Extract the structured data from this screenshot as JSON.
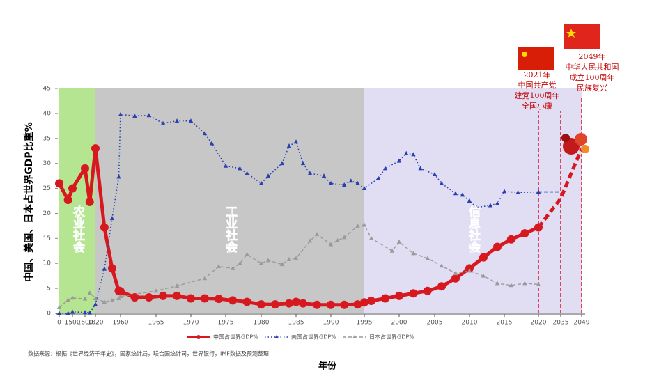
{
  "chart_data": {
    "type": "line",
    "ylabel": "中国、美国、日本占世界GDP比重%",
    "xlabel": "年份",
    "source": "数据来源：根据《世界经济千年史》，国家统计局，联合国统计司，世界银行，IMF数据及预测整理",
    "ylim": [
      0,
      45
    ],
    "yticks": [
      0,
      5,
      10,
      15,
      20,
      25,
      30,
      35,
      40,
      45
    ],
    "xlim": [
      0,
      2049
    ],
    "xticks": [
      0,
      1500,
      1600,
      1820,
      1960,
      1965,
      1970,
      1975,
      1980,
      1985,
      1990,
      1995,
      2000,
      2005,
      2010,
      2015,
      2020,
      2035,
      2049
    ],
    "bands": [
      {
        "label": "农业社会",
        "from": 0,
        "to": 1820,
        "color": "#a8e07c"
      },
      {
        "label": "工业社会",
        "from": 1820,
        "to": 1995,
        "color": "#bdbdbd"
      },
      {
        "label": "信息社会",
        "from": 1995,
        "to": 2049,
        "color": "#dcd8f2"
      }
    ],
    "markers": [
      2020,
      2035,
      2049
    ],
    "annotations": [
      {
        "x": 2020,
        "lines": [
          "2021年",
          "中国共产党",
          "建党100周年",
          "全国小康"
        ]
      },
      {
        "x": 2049,
        "lines": [
          "2049年",
          "中华人民共和国",
          "成立100周年",
          "民族复兴"
        ]
      }
    ],
    "series": [
      {
        "name": "中国占世界GDP%",
        "color": "#d7191f",
        "style": "solid",
        "marker": "circle",
        "dashed_after": 2020,
        "x": [
          0,
          1000,
          1500,
          1600,
          1700,
          1820,
          1870,
          1913,
          1950,
          1955,
          1960,
          1962,
          1964,
          1966,
          1968,
          1970,
          1972,
          1974,
          1976,
          1978,
          1980,
          1982,
          1984,
          1985,
          1986,
          1988,
          1990,
          1992,
          1994,
          1995,
          1996,
          1998,
          2000,
          2002,
          2004,
          2006,
          2008,
          2010,
          2012,
          2014,
          2016,
          2018,
          2020,
          2035,
          2049
        ],
        "values": [
          26,
          22.7,
          25,
          29,
          22.3,
          33,
          17.2,
          9,
          4.5,
          4.5,
          4.4,
          3.2,
          3.2,
          3.5,
          3.5,
          3.0,
          3.0,
          2.9,
          2.6,
          2.3,
          1.8,
          1.8,
          2.0,
          2.3,
          2.0,
          1.7,
          1.7,
          1.7,
          1.8,
          2.2,
          2.5,
          3.0,
          3.5,
          4.0,
          4.5,
          5.4,
          7.0,
          9.0,
          11.2,
          13.3,
          14.8,
          16.0,
          17.2,
          23,
          33
        ]
      },
      {
        "name": "美国占世界GDP%",
        "color": "#2a3fb0",
        "style": "dotted",
        "marker": "triangle",
        "dashed_after": 2020,
        "x": [
          0,
          1000,
          1500,
          1600,
          1700,
          1820,
          1870,
          1913,
          1950,
          1960,
          1962,
          1964,
          1966,
          1968,
          1970,
          1972,
          1973,
          1975,
          1977,
          1978,
          1980,
          1981,
          1983,
          1984,
          1985,
          1986,
          1987,
          1989,
          1990,
          1992,
          1993,
          1994,
          1995,
          1997,
          1998,
          2000,
          2001,
          2002,
          2003,
          2005,
          2006,
          2008,
          2009,
          2010,
          2011,
          2013,
          2014,
          2015,
          2017,
          2020,
          2035
        ],
        "values": [
          0,
          0,
          0.3,
          0.2,
          0.1,
          1.8,
          8.9,
          19,
          27.3,
          39.8,
          39.5,
          39.6,
          38,
          38.5,
          38.5,
          36,
          34,
          29.5,
          29,
          28,
          26,
          27.5,
          30,
          33.5,
          34.3,
          30,
          28,
          27.5,
          26,
          25.7,
          26.5,
          26,
          25,
          27,
          29,
          30.5,
          32,
          31.8,
          29,
          27.8,
          26,
          24,
          23.7,
          22.5,
          21.2,
          21.6,
          22,
          24.4,
          24.2,
          24.3,
          24.3
        ]
      },
      {
        "name": "日本占世界GDP%",
        "color": "#9a9a9a",
        "style": "dashed",
        "marker": "triangle",
        "dashed_after": 2049,
        "x": [
          0,
          1000,
          1500,
          1600,
          1700,
          1820,
          1870,
          1913,
          1950,
          1960,
          1965,
          1968,
          1972,
          1974,
          1976,
          1977,
          1978,
          1980,
          1981,
          1983,
          1984,
          1985,
          1987,
          1988,
          1990,
          1991,
          1992,
          1994,
          1995,
          1996,
          1999,
          2000,
          2002,
          2004,
          2006,
          2008,
          2010,
          2012,
          2014,
          2016,
          2018,
          2020
        ],
        "values": [
          1.2,
          2.7,
          3.1,
          2.9,
          4.1,
          3.0,
          2.3,
          2.6,
          3.0,
          3.4,
          4.5,
          5.5,
          7,
          9.4,
          9,
          10,
          11.8,
          10,
          10.6,
          9.8,
          10.8,
          11,
          14.5,
          15.8,
          13.8,
          14.6,
          15.2,
          17.5,
          17.7,
          15,
          12.5,
          14.3,
          12,
          11,
          9.5,
          8,
          8.5,
          7.5,
          6,
          5.6,
          6,
          5.8
        ]
      }
    ]
  }
}
